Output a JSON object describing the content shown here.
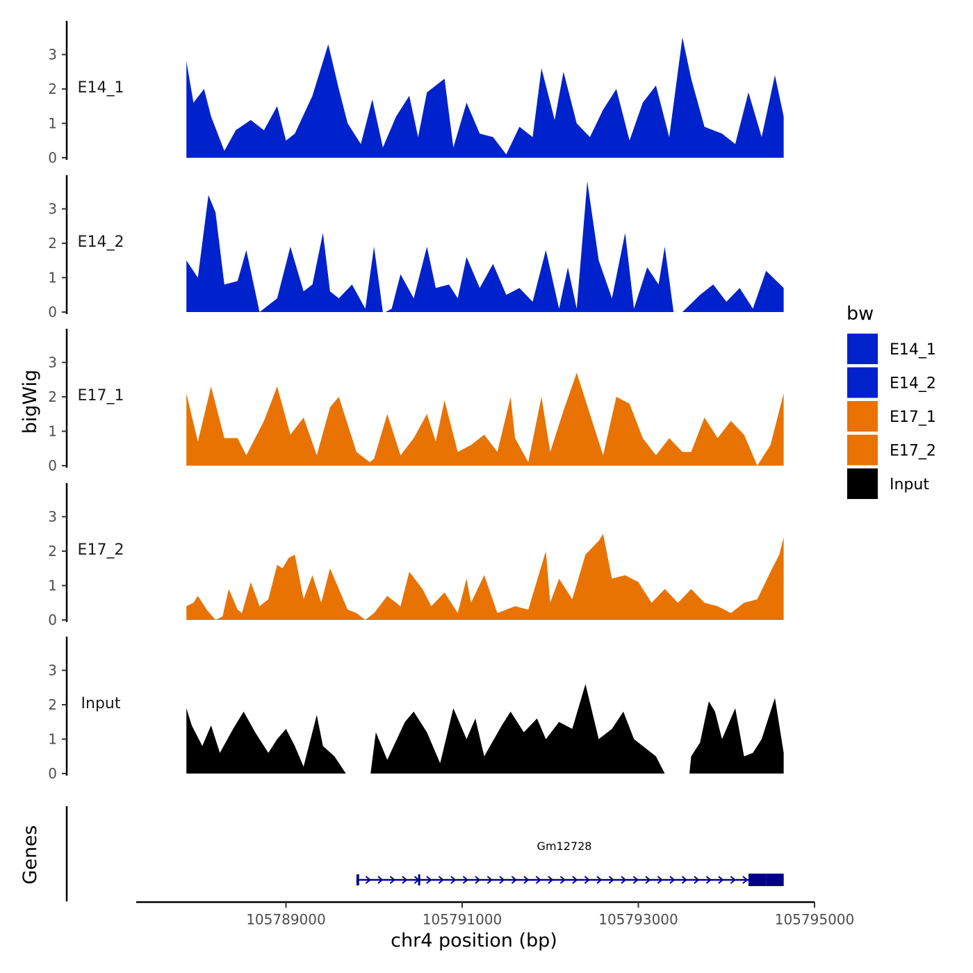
{
  "chart_data": {
    "type": "area",
    "title": "",
    "xlabel": "chr4 position (bp)",
    "ylabel": "bigWig",
    "genes_label": "Genes",
    "xlim": [
      105787300,
      105795000
    ],
    "ylim": [
      0,
      3.9
    ],
    "x_ticks": [
      105789000,
      105791000,
      105793000,
      105795000
    ],
    "x_tick_labels": [
      "105789000",
      "105791000",
      "105793000",
      "105795000"
    ],
    "y_ticks": [
      0,
      1,
      2,
      3
    ],
    "y_tick_labels": [
      "0",
      "1",
      "2",
      "3"
    ],
    "legend": {
      "title": "bw",
      "entries": [
        {
          "label": "E14_1",
          "color": "#0022cc"
        },
        {
          "label": "E14_2",
          "color": "#0022cc"
        },
        {
          "label": "E17_1",
          "color": "#e87303"
        },
        {
          "label": "E17_2",
          "color": "#e87303"
        },
        {
          "label": "Input",
          "color": "#000000"
        }
      ]
    },
    "series": [
      {
        "name": "E14_1",
        "label": "E14_1",
        "color": "#0022cc",
        "x": [
          105787870,
          105787950,
          105788070,
          105788150,
          105788300,
          105788430,
          105788600,
          105788750,
          105788900,
          105789000,
          105789100,
          105789300,
          105789480,
          105789600,
          105789700,
          105789850,
          105789980,
          105790100,
          105790250,
          105790400,
          105790500,
          105790600,
          105790800,
          105790900,
          105791050,
          105791200,
          105791350,
          105791500,
          105791650,
          105791800,
          105791900,
          105792050,
          105792150,
          105792300,
          105792450,
          105792600,
          105792750,
          105792900,
          105793050,
          105793200,
          105793350,
          105793500,
          105793600,
          105793750,
          105793950,
          105794100,
          105794250,
          105794400,
          105794550,
          105794650
        ],
        "values": [
          2.8,
          1.6,
          2.0,
          1.2,
          0.2,
          0.8,
          1.1,
          0.8,
          1.5,
          0.5,
          0.7,
          1.8,
          3.3,
          2.0,
          1.0,
          0.4,
          1.7,
          0.3,
          1.2,
          1.8,
          0.6,
          1.9,
          2.3,
          0.3,
          1.6,
          0.7,
          0.6,
          0.1,
          0.9,
          0.6,
          2.6,
          1.1,
          2.5,
          1.0,
          0.6,
          1.4,
          2.0,
          0.5,
          1.6,
          2.1,
          0.6,
          3.5,
          2.3,
          0.9,
          0.7,
          0.4,
          1.9,
          0.6,
          2.4,
          1.2
        ]
      },
      {
        "name": "E14_2",
        "label": "E14_2",
        "color": "#0022cc",
        "x": [
          105787870,
          105788000,
          105788120,
          105788200,
          105788300,
          105788450,
          105788550,
          105788700,
          105788750,
          105788900,
          105789050,
          105789200,
          105789300,
          105789420,
          105789500,
          105789600,
          105789750,
          105789900,
          105790000,
          105790100,
          105790130,
          105790200,
          105790300,
          105790450,
          105790600,
          105790700,
          105790850,
          105790950,
          105791050,
          105791200,
          105791350,
          105791500,
          105791650,
          105791800,
          105791950,
          105792100,
          105792200,
          105792300,
          105792420,
          105792550,
          105792700,
          105792850,
          105792950,
          105793100,
          105793230,
          105793300,
          105793400,
          105793500,
          105793700,
          105793850,
          105794000,
          105794150,
          105794300,
          105794450,
          105794650
        ],
        "values": [
          1.5,
          1.0,
          3.4,
          2.9,
          0.8,
          0.9,
          1.8,
          0.0,
          0.1,
          0.4,
          1.9,
          0.6,
          0.8,
          2.3,
          0.6,
          0.4,
          0.8,
          0.1,
          1.9,
          0.0,
          0.0,
          0.1,
          1.1,
          0.4,
          1.9,
          0.7,
          0.8,
          0.4,
          1.6,
          0.7,
          1.4,
          0.5,
          0.7,
          0.3,
          1.8,
          0.1,
          1.3,
          0.1,
          3.8,
          1.5,
          0.4,
          2.3,
          0.1,
          1.3,
          0.8,
          1.9,
          0.0,
          0.0,
          0.5,
          0.8,
          0.3,
          0.7,
          0.1,
          1.2,
          0.7
        ]
      },
      {
        "name": "E17_1",
        "label": "E17_1",
        "color": "#e87303",
        "x": [
          105787870,
          105788000,
          105788150,
          105788300,
          105788450,
          105788550,
          105788750,
          105788900,
          105789050,
          105789200,
          105789350,
          105789500,
          105789600,
          105789800,
          105789950,
          105790000,
          105790150,
          105790300,
          105790450,
          105790600,
          105790700,
          105790800,
          105790950,
          105791100,
          105791250,
          105791400,
          105791550,
          105791600,
          105791750,
          105791900,
          105792000,
          105792150,
          105792300,
          105792450,
          105792600,
          105792750,
          105792900,
          105793050,
          105793200,
          105793350,
          105793500,
          105793600,
          105793750,
          105793900,
          105794050,
          105794200,
          105794350,
          105794500,
          105794650
        ],
        "values": [
          2.1,
          0.7,
          2.3,
          0.8,
          0.8,
          0.3,
          1.3,
          2.3,
          0.9,
          1.4,
          0.3,
          1.7,
          2.0,
          0.4,
          0.1,
          0.2,
          1.5,
          0.3,
          0.8,
          1.5,
          0.7,
          1.9,
          0.4,
          0.6,
          0.9,
          0.4,
          2.0,
          0.8,
          0.1,
          2.0,
          0.4,
          1.6,
          2.7,
          1.5,
          0.3,
          2.0,
          1.8,
          0.8,
          0.3,
          0.8,
          0.4,
          0.4,
          1.4,
          0.8,
          1.3,
          0.9,
          0.0,
          0.6,
          2.1
        ]
      },
      {
        "name": "E17_2",
        "label": "E17_2",
        "color": "#e87303",
        "x": [
          105787870,
          105787950,
          105788000,
          105788100,
          105788200,
          105788280,
          105788350,
          105788450,
          105788500,
          105788600,
          105788700,
          105788800,
          105788900,
          105788960,
          105789030,
          105789100,
          105789200,
          105789300,
          105789400,
          105789500,
          105789600,
          105789700,
          105789800,
          105789900,
          105790000,
          105790150,
          105790300,
          105790400,
          105790550,
          105790650,
          105790800,
          105790950,
          105791050,
          105791100,
          105791250,
          105791400,
          105791600,
          105791750,
          105791950,
          105792000,
          105792100,
          105792250,
          105792400,
          105792550,
          105792600,
          105792700,
          105792850,
          105793000,
          105793150,
          105793300,
          105793450,
          105793600,
          105793750,
          105793900,
          105794050,
          105794200,
          105794350,
          105794500,
          105794600,
          105794650
        ],
        "values": [
          0.4,
          0.5,
          0.7,
          0.3,
          0.0,
          0.1,
          0.9,
          0.3,
          0.2,
          1.1,
          0.4,
          0.6,
          1.6,
          1.5,
          1.8,
          1.9,
          0.6,
          1.3,
          0.5,
          1.5,
          0.9,
          0.3,
          0.2,
          0.0,
          0.2,
          0.7,
          0.4,
          1.4,
          0.9,
          0.4,
          0.8,
          0.2,
          1.2,
          0.5,
          1.3,
          0.2,
          0.4,
          0.3,
          2.0,
          0.5,
          1.2,
          0.6,
          1.9,
          2.3,
          2.5,
          1.2,
          1.3,
          1.1,
          0.5,
          0.9,
          0.5,
          0.9,
          0.5,
          0.4,
          0.2,
          0.5,
          0.6,
          1.4,
          1.9,
          2.4
        ]
      },
      {
        "name": "Input",
        "label": "Input",
        "color": "#000000",
        "x": [
          105787870,
          105787930,
          105788050,
          105788150,
          105788250,
          105788400,
          105788520,
          105788650,
          105788800,
          105788900,
          105789000,
          105789100,
          105789200,
          105789350,
          105789420,
          105789550,
          105789680,
          105789800,
          105789830,
          105789960,
          105790020,
          105790150,
          105790350,
          105790450,
          105790600,
          105790750,
          105790900,
          105791050,
          105791150,
          105791250,
          105791450,
          105791550,
          105791700,
          105791850,
          105791950,
          105792100,
          105792250,
          105792400,
          105792550,
          105792700,
          105792830,
          105792950,
          105793050,
          105793200,
          105793300,
          105793450,
          105793580,
          105793600,
          105793700,
          105793800,
          105793870,
          105793950,
          105794100,
          105794200,
          105794300,
          105794400,
          105794500,
          105794550,
          105794650
        ],
        "values": [
          1.9,
          1.4,
          0.8,
          1.4,
          0.6,
          1.3,
          1.8,
          1.2,
          0.6,
          1.0,
          1.3,
          0.8,
          0.2,
          1.7,
          0.8,
          0.5,
          0.0,
          0.0,
          0.0,
          0.0,
          1.2,
          0.4,
          1.5,
          1.8,
          1.2,
          0.3,
          1.9,
          1.0,
          1.6,
          0.5,
          1.4,
          1.8,
          1.2,
          1.6,
          1.0,
          1.5,
          1.3,
          2.6,
          1.0,
          1.3,
          1.8,
          1.0,
          0.8,
          0.5,
          0.0,
          0.0,
          0.0,
          0.5,
          0.9,
          2.1,
          1.8,
          1.0,
          1.9,
          0.5,
          0.6,
          1.0,
          1.8,
          2.2,
          0.6
        ]
      }
    ],
    "gene_track": {
      "gene_name": "Gm12728",
      "color": "#00008b",
      "strand": "+",
      "start": 105789800,
      "end": 105794650,
      "exons": [
        [
          105789800,
          105789830
        ],
        [
          105790500,
          105790520
        ],
        [
          105794250,
          105794450
        ],
        [
          105794450,
          105794650
        ]
      ]
    }
  }
}
